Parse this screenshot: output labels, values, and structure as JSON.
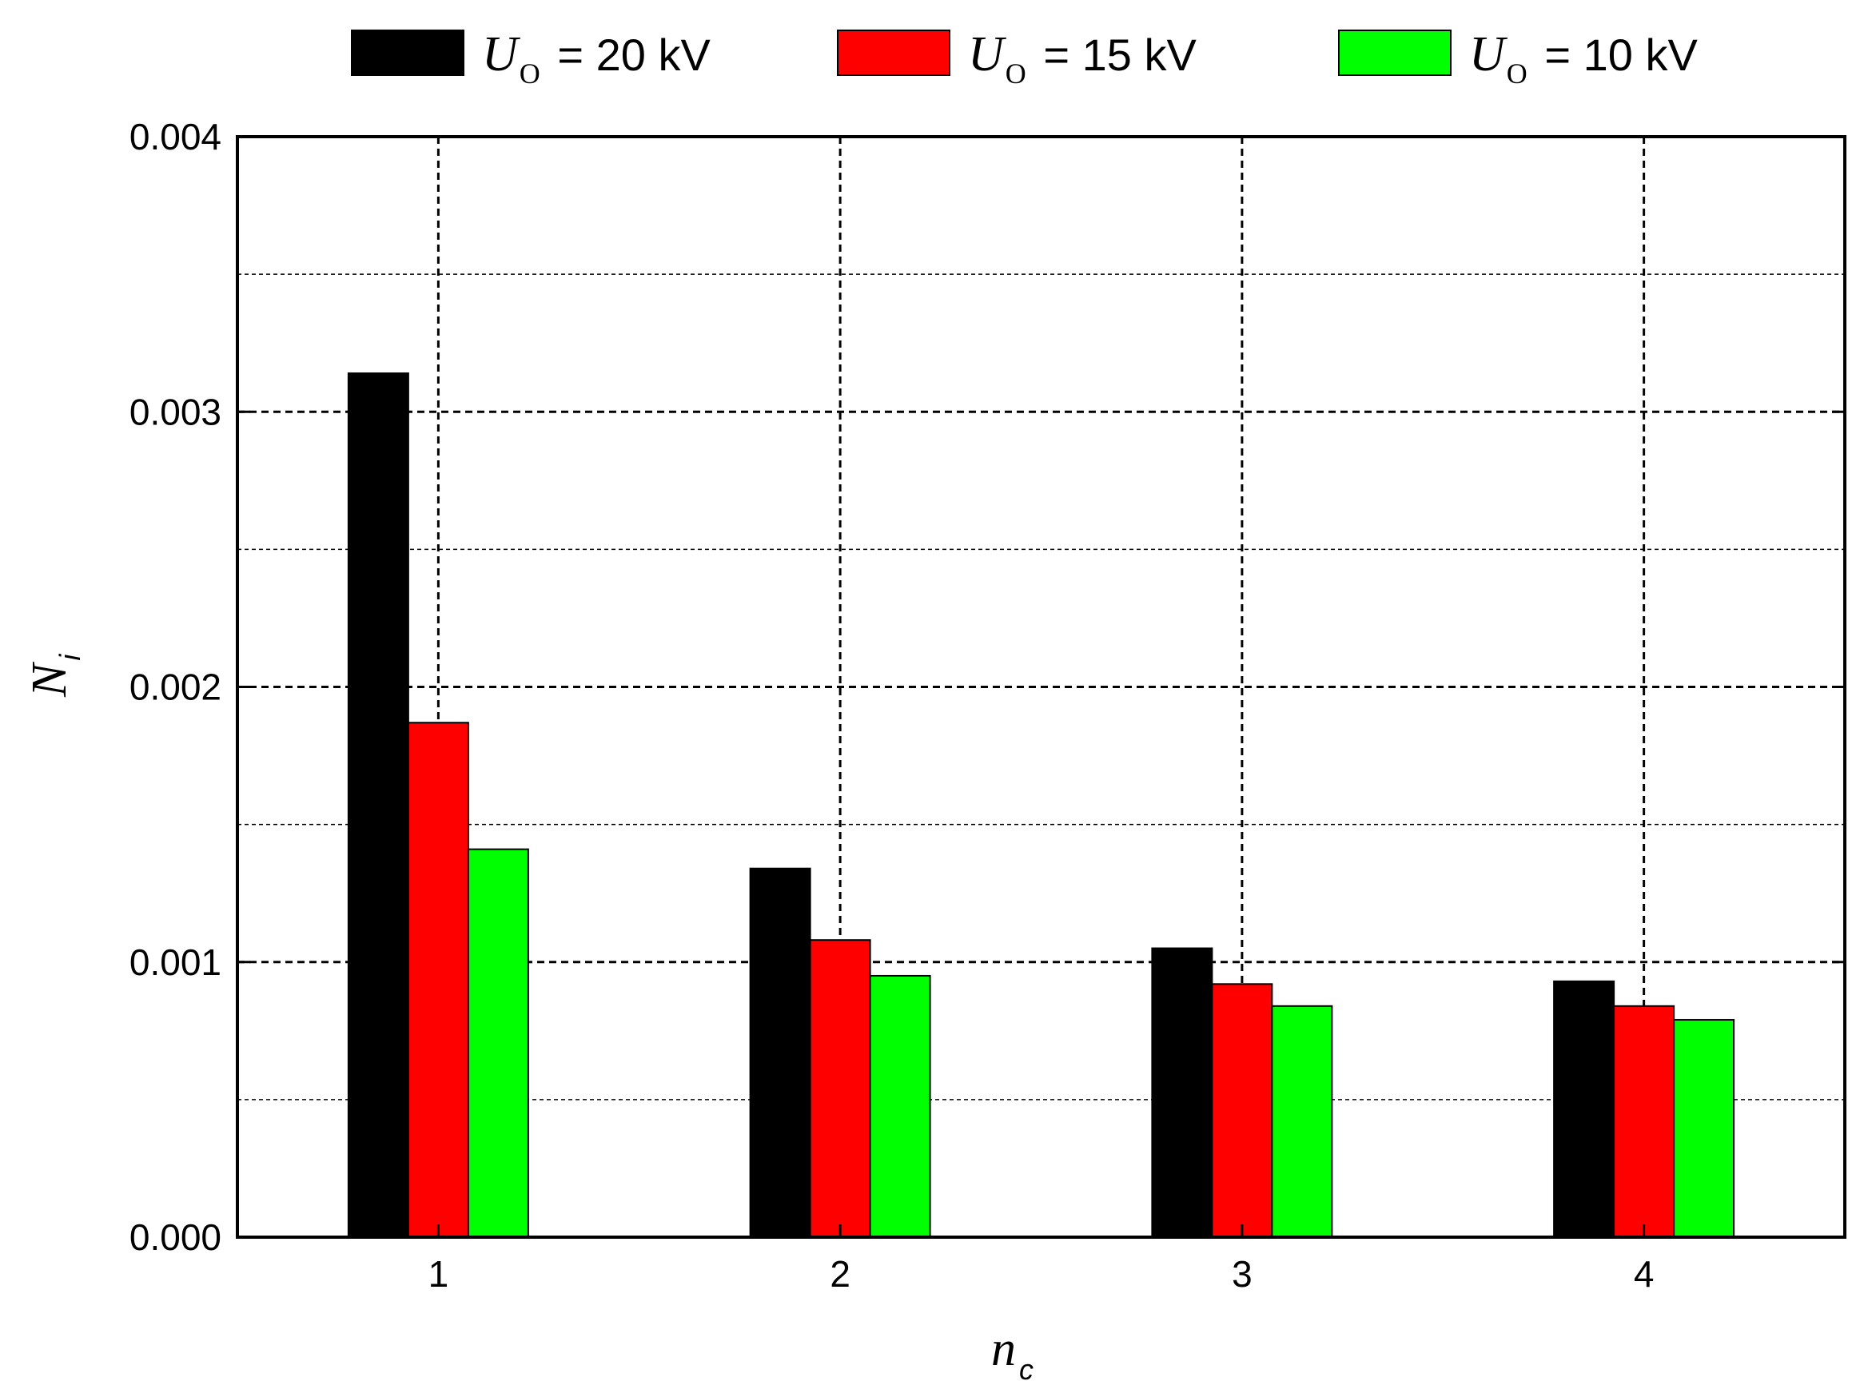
{
  "chart_data": {
    "type": "bar",
    "categories": [
      "1",
      "2",
      "3",
      "4"
    ],
    "series": [
      {
        "name": "U_O = 20 kV",
        "name_var": "U",
        "name_sub": "O",
        "name_rest": " = 20 kV",
        "color": "#000000",
        "values": [
          0.00314,
          0.00134,
          0.00105,
          0.00093
        ]
      },
      {
        "name": "U_O = 15 kV",
        "name_var": "U",
        "name_sub": "O",
        "name_rest": " = 15 kV",
        "color": "#ff0000",
        "values": [
          0.00187,
          0.00108,
          0.00092,
          0.00084
        ]
      },
      {
        "name": "U_O = 10 kV",
        "name_var": "U",
        "name_sub": "O",
        "name_rest": " = 10 kV",
        "color": "#00ff00",
        "values": [
          0.00141,
          0.00095,
          0.00084,
          0.00079
        ]
      }
    ],
    "xlabel": {
      "var": "n",
      "sub": "c"
    },
    "ylabel": {
      "var": "N",
      "sub": "i"
    },
    "ylim": [
      0,
      0.004
    ],
    "yticks": [
      {
        "value": 0,
        "label": "0.000"
      },
      {
        "value": 0.001,
        "label": "0.001"
      },
      {
        "value": 0.002,
        "label": "0.002"
      },
      {
        "value": 0.003,
        "label": "0.003"
      },
      {
        "value": 0.004,
        "label": "0.004"
      }
    ],
    "ygrid_minor": [
      0.0005,
      0.0015,
      0.0025,
      0.0035
    ],
    "grid": true,
    "legend_position": "top"
  }
}
